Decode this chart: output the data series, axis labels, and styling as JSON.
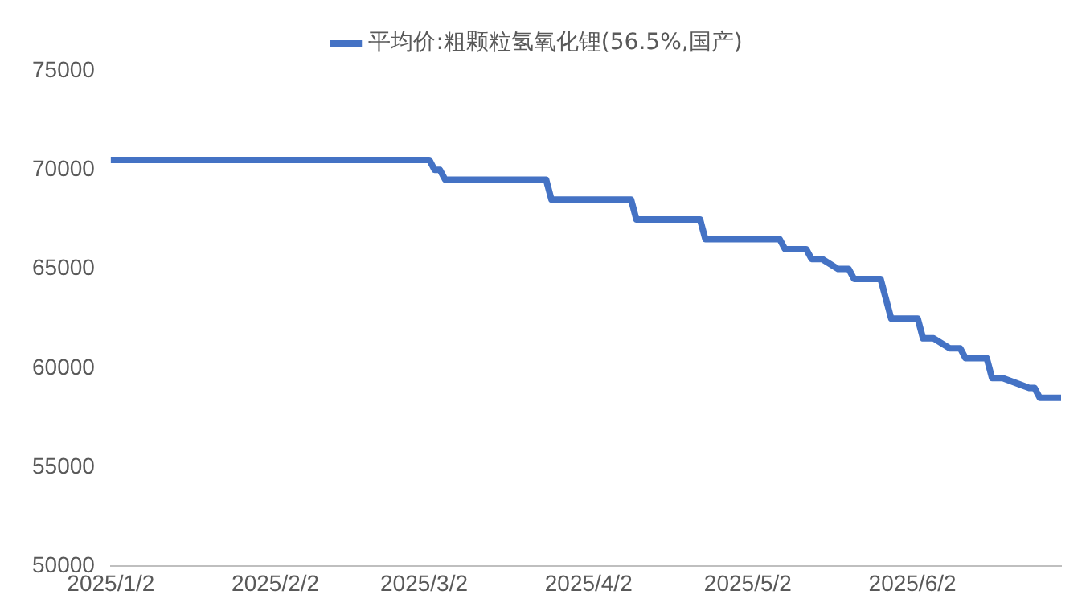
{
  "chart_data": {
    "type": "line",
    "legend": "top",
    "grid": false,
    "marker": "none",
    "line_style": "solid",
    "x": [
      "2025-01-02",
      "2025-03-03",
      "2025-03-04",
      "2025-03-05",
      "2025-03-06",
      "2025-03-25",
      "2025-03-26",
      "2025-04-10",
      "2025-04-11",
      "2025-04-23",
      "2025-04-24",
      "2025-05-08",
      "2025-05-09",
      "2025-05-13",
      "2025-05-14",
      "2025-05-16",
      "2025-05-19",
      "2025-05-21",
      "2025-05-22",
      "2025-05-27",
      "2025-05-28",
      "2025-05-29",
      "2025-06-03",
      "2025-06-04",
      "2025-06-06",
      "2025-06-09",
      "2025-06-11",
      "2025-06-12",
      "2025-06-16",
      "2025-06-17",
      "2025-06-19",
      "2025-06-24",
      "2025-06-25",
      "2025-06-26",
      "2025-06-30"
    ],
    "series": [
      {
        "name": "平均价:粗颗粒氢氧化锂(56.5%,国产)",
        "color": "#4472c4",
        "values": [
          70500,
          70500,
          70000,
          70000,
          69500,
          69500,
          68500,
          68500,
          67500,
          67500,
          66500,
          66500,
          66000,
          66000,
          65500,
          65500,
          65000,
          65000,
          64500,
          64500,
          63500,
          62500,
          62500,
          61500,
          61500,
          61000,
          61000,
          60500,
          60500,
          59500,
          59500,
          59000,
          59000,
          58500,
          58500
        ]
      }
    ],
    "xlim": [
      "2025-01-02",
      "2025-06-30"
    ],
    "xticks": [
      {
        "value": "2025-01-02",
        "label": "2025/1/2"
      },
      {
        "value": "2025-02-02",
        "label": "2025/2/2"
      },
      {
        "value": "2025-03-02",
        "label": "2025/3/2"
      },
      {
        "value": "2025-04-02",
        "label": "2025/4/2"
      },
      {
        "value": "2025-05-02",
        "label": "2025/5/2"
      },
      {
        "value": "2025-06-02",
        "label": "2025/6/2"
      }
    ],
    "ylim": [
      50000,
      75000
    ],
    "yticks": [
      50000,
      55000,
      60000,
      65000,
      70000,
      75000
    ]
  }
}
